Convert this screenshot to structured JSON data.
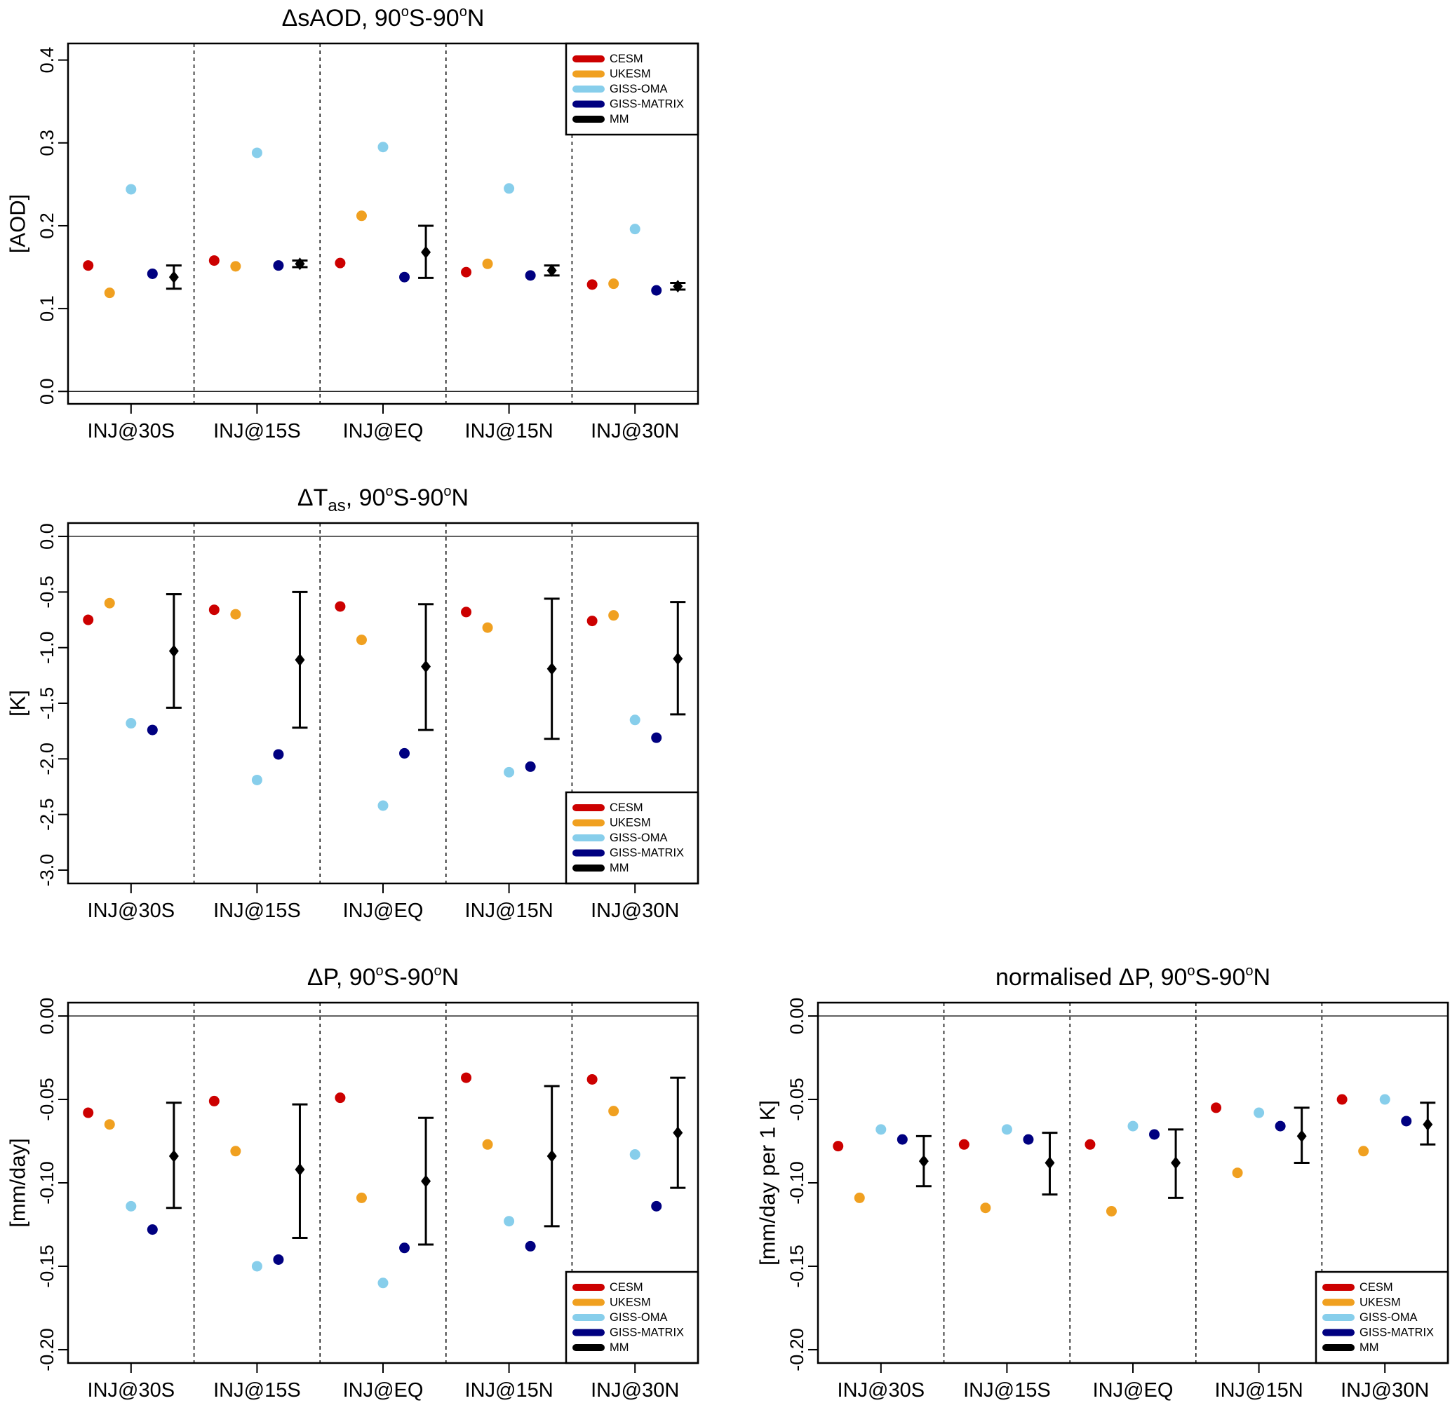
{
  "legend": {
    "models": [
      "CESM",
      "UKESM",
      "GISS-OMA",
      "GISS-MATRIX",
      "MM"
    ],
    "colors": [
      "#cc0000",
      "#f0a020",
      "#87ceeb",
      "#000080",
      "#000000"
    ]
  },
  "chart_data": [
    {
      "type": "scatter",
      "title": "ΔsAOD, 90°S-90°N",
      "title_parts": {
        "pre": "ΔsAOD, 90",
        "s1": "o",
        "mid": "S-90",
        "s2": "o",
        "post": "N"
      },
      "ylabel": "[AOD]",
      "categories": [
        "INJ@30S",
        "INJ@15S",
        "INJ@EQ",
        "INJ@15N",
        "INJ@30N"
      ],
      "ylim": [
        -0.015,
        0.42
      ],
      "yticks": [
        "0.0",
        "0.1",
        "0.2",
        "0.3",
        "0.4"
      ],
      "legend_position": "top-right",
      "series": [
        {
          "name": "CESM",
          "values": [
            0.152,
            0.158,
            0.155,
            0.144,
            0.129
          ]
        },
        {
          "name": "UKESM",
          "values": [
            0.119,
            0.151,
            0.212,
            0.154,
            0.13
          ]
        },
        {
          "name": "GISS-OMA",
          "values": [
            0.244,
            0.288,
            0.295,
            0.245,
            0.196
          ]
        },
        {
          "name": "GISS-MATRIX",
          "values": [
            0.142,
            0.152,
            0.138,
            0.14,
            0.122
          ]
        }
      ],
      "mm": {
        "name": "MM",
        "mean": [
          0.138,
          0.154,
          0.168,
          0.146,
          0.127
        ],
        "low": [
          0.124,
          0.15,
          0.137,
          0.14,
          0.123
        ],
        "high": [
          0.152,
          0.158,
          0.2,
          0.152,
          0.131
        ]
      }
    },
    {
      "type": "scatter",
      "title": "ΔTas, 90°S-90°N",
      "title_parts": {
        "pre": "ΔT",
        "sub": "as",
        "mid0": ", 90",
        "s1": "o",
        "mid": "S-90",
        "s2": "o",
        "post": "N"
      },
      "ylabel": "[K]",
      "categories": [
        "INJ@30S",
        "INJ@15S",
        "INJ@EQ",
        "INJ@15N",
        "INJ@30N"
      ],
      "ylim": [
        -3.12,
        0.12
      ],
      "yticks": [
        "0.0",
        "-0.5",
        "-1.0",
        "-1.5",
        "-2.0",
        "-2.5",
        "-3.0"
      ],
      "legend_position": "bottom-right",
      "series": [
        {
          "name": "CESM",
          "values": [
            -0.75,
            -0.66,
            -0.63,
            -0.68,
            -0.76
          ]
        },
        {
          "name": "UKESM",
          "values": [
            -0.6,
            -0.7,
            -0.93,
            -0.82,
            -0.71
          ]
        },
        {
          "name": "GISS-OMA",
          "values": [
            -1.68,
            -2.19,
            -2.42,
            -2.12,
            -1.65
          ]
        },
        {
          "name": "GISS-MATRIX",
          "values": [
            -1.74,
            -1.96,
            -1.95,
            -2.07,
            -1.81
          ]
        }
      ],
      "mm": {
        "name": "MM",
        "mean": [
          -1.03,
          -1.11,
          -1.17,
          -1.19,
          -1.1
        ],
        "low": [
          -1.54,
          -1.72,
          -1.74,
          -1.82,
          -1.6
        ],
        "high": [
          -0.52,
          -0.5,
          -0.61,
          -0.56,
          -0.59
        ]
      }
    },
    {
      "type": "scatter",
      "title": "ΔP, 90°S-90°N",
      "title_parts": {
        "pre": "ΔP, 90",
        "s1": "o",
        "mid": "S-90",
        "s2": "o",
        "post": "N"
      },
      "ylabel": "[mm/day]",
      "categories": [
        "INJ@30S",
        "INJ@15S",
        "INJ@EQ",
        "INJ@15N",
        "INJ@30N"
      ],
      "ylim": [
        -0.208,
        0.008
      ],
      "yticks": [
        "0.00",
        "-0.05",
        "-0.10",
        "-0.15",
        "-0.20"
      ],
      "legend_position": "bottom-right",
      "series": [
        {
          "name": "CESM",
          "values": [
            -0.058,
            -0.051,
            -0.049,
            -0.037,
            -0.038
          ]
        },
        {
          "name": "UKESM",
          "values": [
            -0.065,
            -0.081,
            -0.109,
            -0.077,
            -0.057
          ]
        },
        {
          "name": "GISS-OMA",
          "values": [
            -0.114,
            -0.15,
            -0.16,
            -0.123,
            -0.083
          ]
        },
        {
          "name": "GISS-MATRIX",
          "values": [
            -0.128,
            -0.146,
            -0.139,
            -0.138,
            -0.114
          ]
        }
      ],
      "mm": {
        "name": "MM",
        "mean": [
          -0.084,
          -0.092,
          -0.099,
          -0.084,
          -0.07
        ],
        "low": [
          -0.115,
          -0.133,
          -0.137,
          -0.126,
          -0.103
        ],
        "high": [
          -0.052,
          -0.053,
          -0.061,
          -0.042,
          -0.037
        ]
      }
    },
    {
      "type": "scatter",
      "title": "normalised ΔP, 90°S-90°N",
      "title_parts": {
        "pre": "normalised ΔP, 90",
        "s1": "o",
        "mid": "S-90",
        "s2": "o",
        "post": "N"
      },
      "ylabel": "[mm/day per 1 K]",
      "categories": [
        "INJ@30S",
        "INJ@15S",
        "INJ@EQ",
        "INJ@15N",
        "INJ@30N"
      ],
      "ylim": [
        -0.208,
        0.008
      ],
      "yticks": [
        "0.00",
        "-0.05",
        "-0.10",
        "-0.15",
        "-0.20"
      ],
      "legend_position": "bottom-right",
      "series": [
        {
          "name": "CESM",
          "values": [
            -0.078,
            -0.077,
            -0.077,
            -0.055,
            -0.05
          ]
        },
        {
          "name": "UKESM",
          "values": [
            -0.109,
            -0.115,
            -0.117,
            -0.094,
            -0.081
          ]
        },
        {
          "name": "GISS-OMA",
          "values": [
            -0.068,
            -0.068,
            -0.066,
            -0.058,
            -0.05
          ]
        },
        {
          "name": "GISS-MATRIX",
          "values": [
            -0.074,
            -0.074,
            -0.071,
            -0.066,
            -0.063
          ]
        }
      ],
      "mm": {
        "name": "MM",
        "mean": [
          -0.087,
          -0.088,
          -0.088,
          -0.072,
          -0.065
        ],
        "low": [
          -0.102,
          -0.107,
          -0.109,
          -0.088,
          -0.077
        ],
        "high": [
          -0.072,
          -0.07,
          -0.068,
          -0.055,
          -0.052
        ]
      }
    }
  ]
}
